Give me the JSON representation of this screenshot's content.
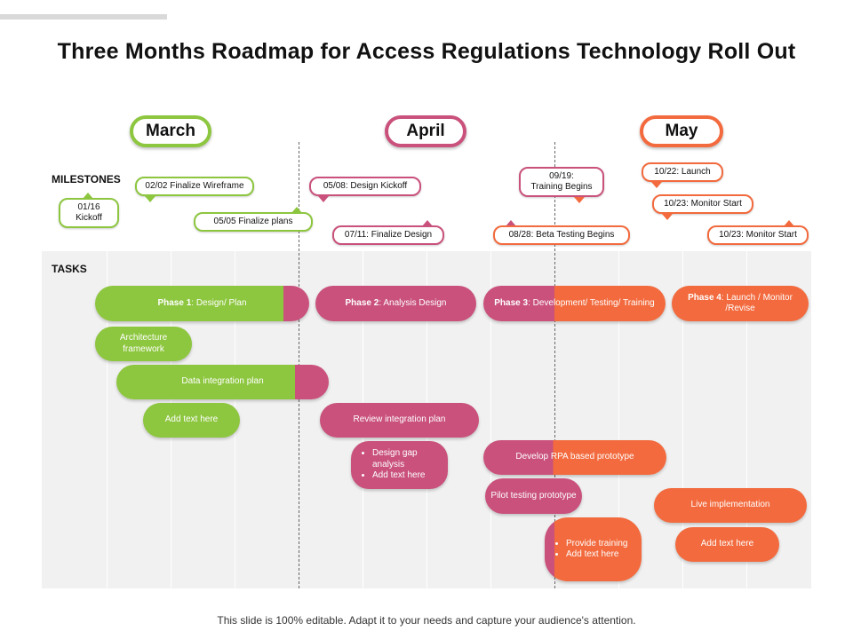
{
  "title": "Three Months Roadmap for Access Regulations Technology Roll Out",
  "months": [
    "March",
    "April",
    "May"
  ],
  "labels": {
    "milestones": "MILESTONES",
    "tasks": "TASKS"
  },
  "milestones": [
    {
      "text": "01/16\nKickoff"
    },
    {
      "text": "02/02 Finalize Wireframe"
    },
    {
      "text": "05/05 Finalize plans"
    },
    {
      "text": "05/08: Design Kickoff"
    },
    {
      "text": "07/11: Finalize Design"
    },
    {
      "text": "09/19:\nTraining Begins"
    },
    {
      "text": "08/28: Beta Testing Begins"
    },
    {
      "text": "10/22: Launch"
    },
    {
      "text": "10/23: Monitor Start"
    },
    {
      "text": "10/23: Monitor Start"
    }
  ],
  "phases": [
    {
      "name": "Phase 1",
      "desc": ": Design/ Plan"
    },
    {
      "name": "Phase 2",
      "desc": ": Analysis Design"
    },
    {
      "name": "Phase 3",
      "desc": ": Development/ Testing/ Training"
    },
    {
      "name": "Phase 4",
      "desc": ": Launch / Monitor /Revise"
    }
  ],
  "tasks": {
    "architecture": "Architecture framework",
    "data_integration": "Data integration plan",
    "add_text_1": "Add text here",
    "review_integration": "Review integration plan",
    "design_gap": [
      "Design gap analysis",
      "Add text here"
    ],
    "develop_rpa": "Develop RPA based prototype",
    "pilot_testing": "Pilot testing prototype",
    "provide_training": [
      "Provide training",
      "Add text here"
    ],
    "live_implementation": "Live implementation",
    "add_text_2": "Add text here"
  },
  "footer": "This slide is 100% editable. Adapt it to your needs and capture your audience's attention.",
  "colors": {
    "green": "#8dc63f",
    "pink": "#c9517c",
    "orange": "#f26a3d",
    "panel": "#f1f1f1"
  }
}
